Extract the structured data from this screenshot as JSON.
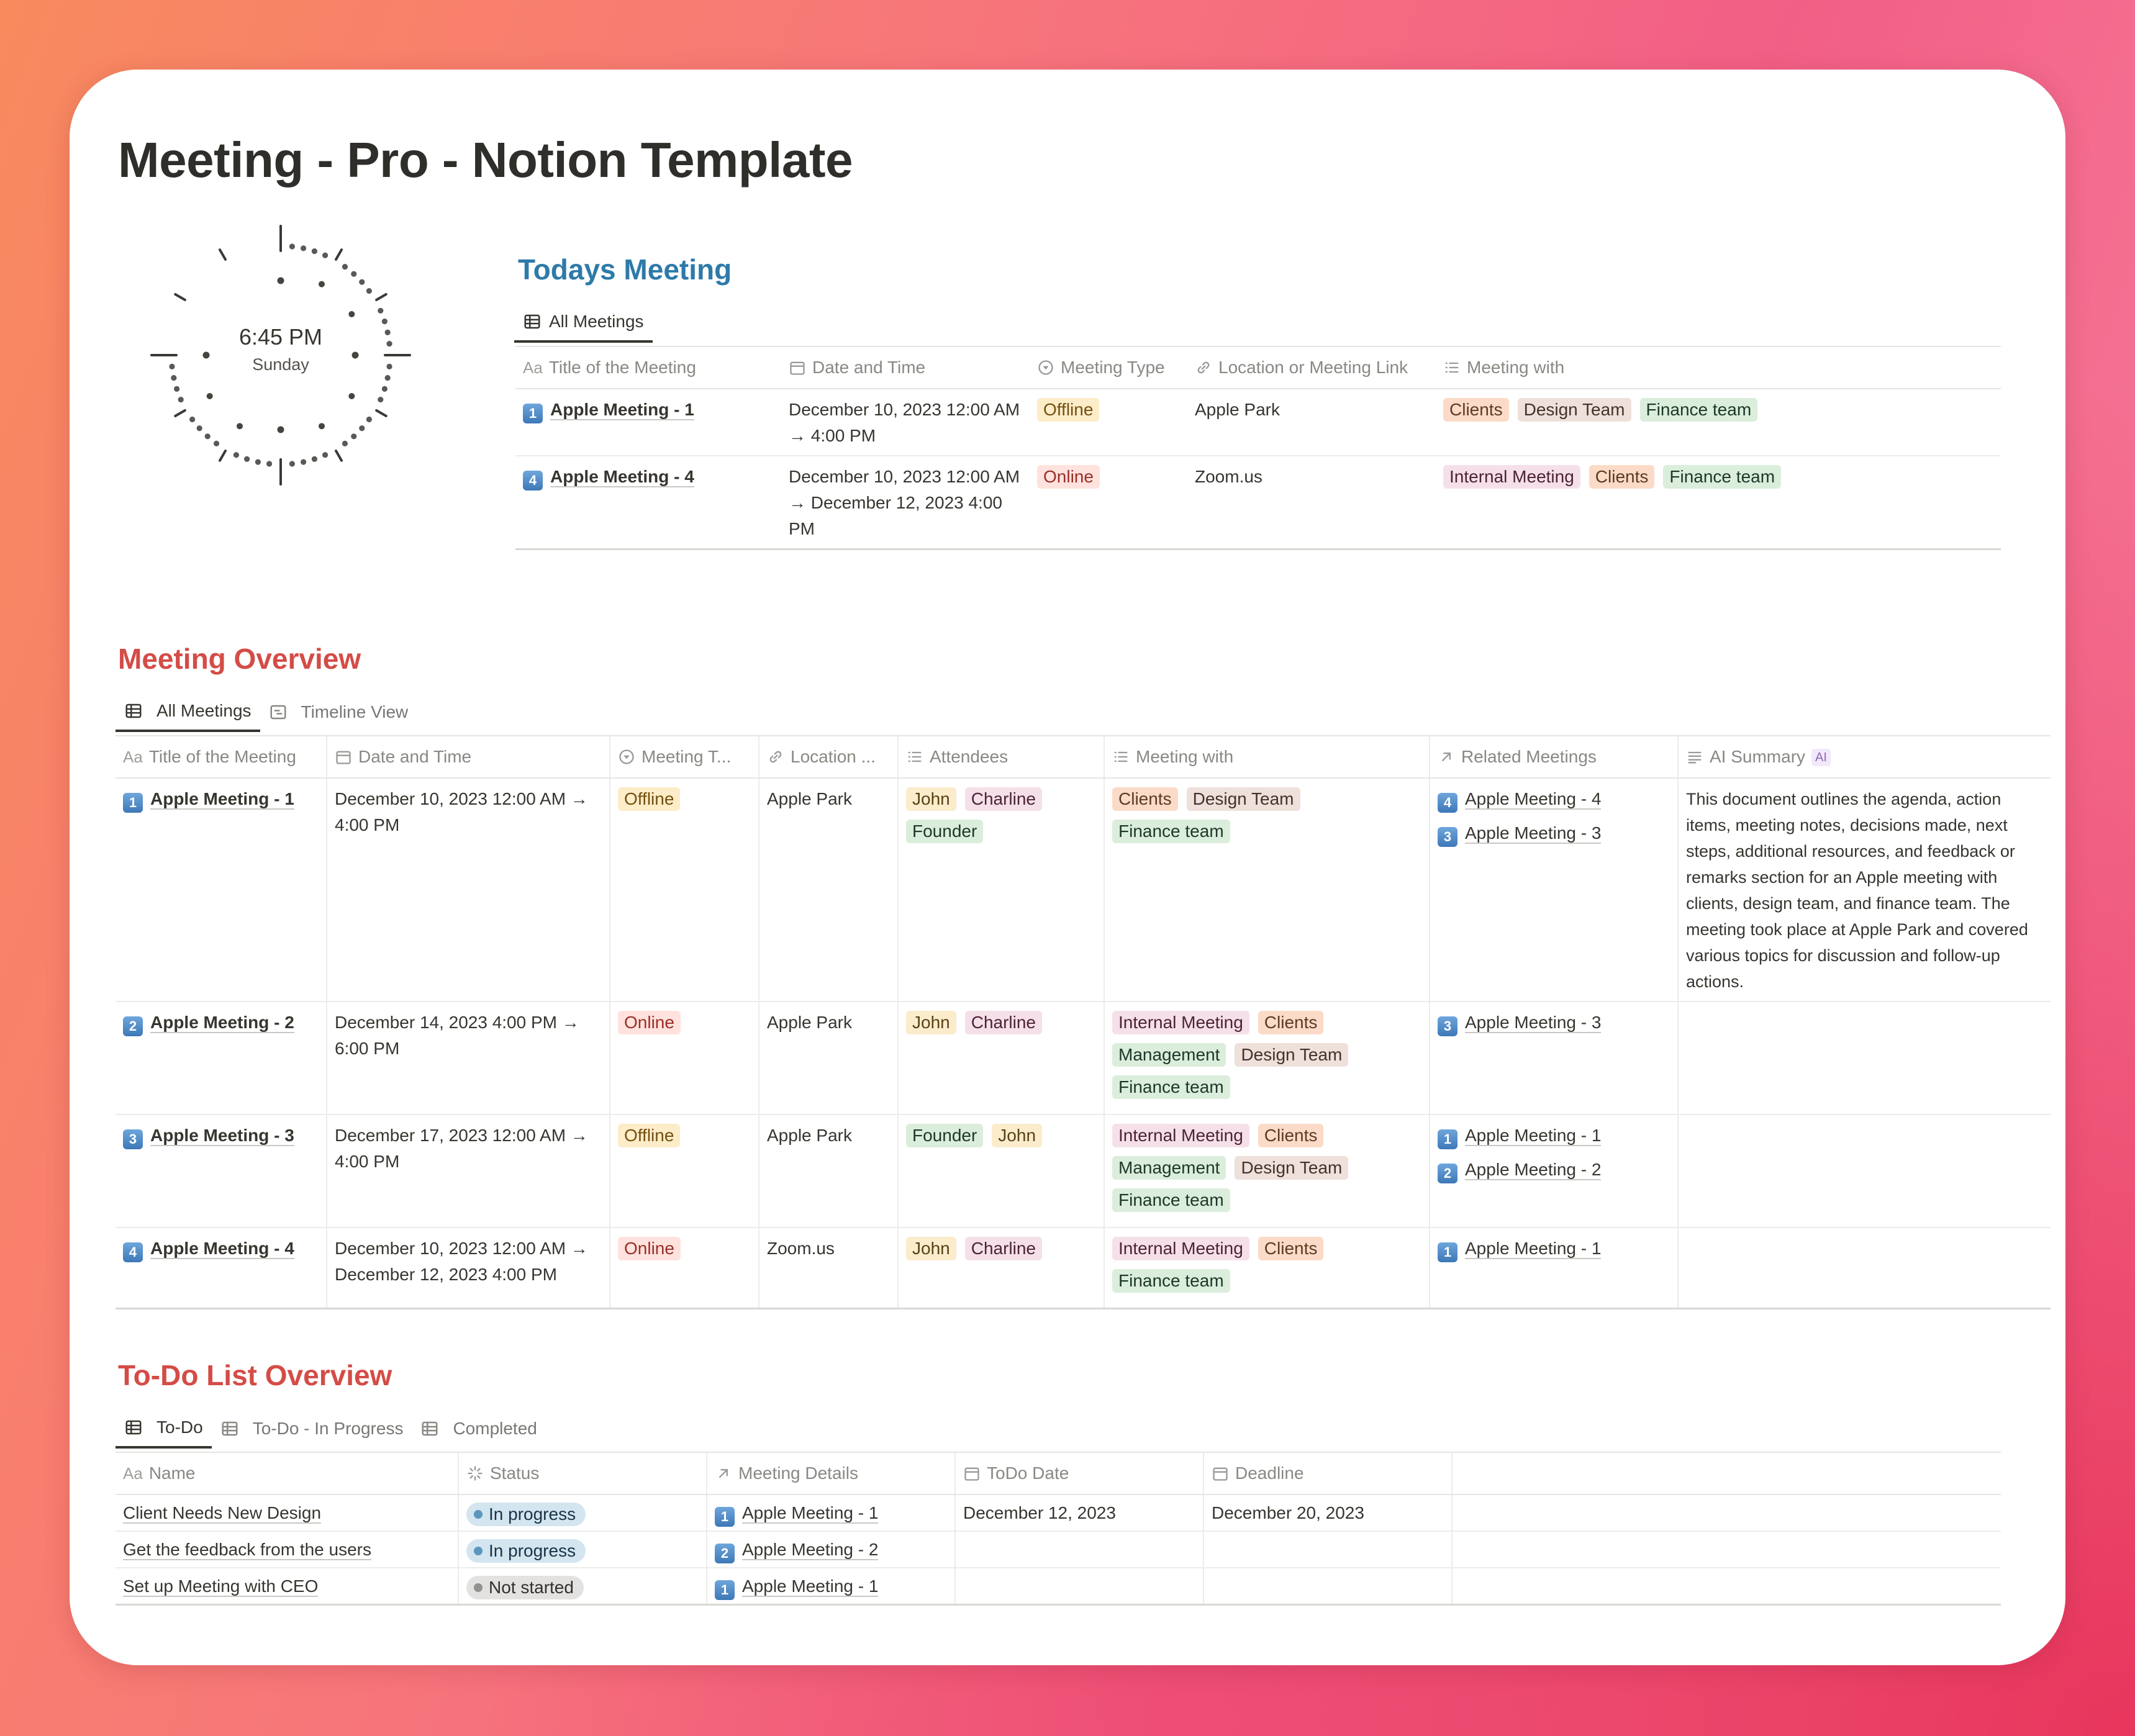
{
  "page_title": "Meeting - Pro - Notion Template",
  "clock": {
    "time": "6:45 PM",
    "day": "Sunday"
  },
  "todays": {
    "heading": "Todays Meeting",
    "tab": "All Meetings",
    "columns": [
      "Title of the Meeting",
      "Date and Time",
      "Meeting Type",
      "Location or Meeting Link",
      "Meeting with"
    ],
    "rows": [
      {
        "num": "1",
        "title": "Apple Meeting - 1",
        "date": "December 10, 2023 12:00 AM → 4:00 PM",
        "type": "Offline",
        "location": "Apple Park",
        "with": [
          "Clients",
          "Design Team",
          "Finance team"
        ]
      },
      {
        "num": "4",
        "title": "Apple Meeting - 4",
        "date": "December 10, 2023 12:00 AM → December 12, 2023 4:00 PM",
        "type": "Online",
        "location": "Zoom.us",
        "with": [
          "Internal Meeting",
          "Clients",
          "Finance team"
        ]
      }
    ]
  },
  "overview": {
    "heading": "Meeting Overview",
    "tabs": [
      "All Meetings",
      "Timeline View"
    ],
    "columns": [
      "Title of the Meeting",
      "Date and Time",
      "Meeting T...",
      "Location ...",
      "Attendees",
      "Meeting with",
      "Related Meetings",
      "AI Summary"
    ],
    "ai_badge": "AI",
    "rows": [
      {
        "num": "1",
        "title": "Apple Meeting - 1",
        "date": "December 10, 2023 12:00 AM → 4:00 PM",
        "type": "Offline",
        "location": "Apple Park",
        "attendees": [
          "John",
          "Charline",
          "Founder"
        ],
        "with": [
          "Clients",
          "Design Team",
          "Finance team"
        ],
        "related": [
          {
            "num": "4",
            "title": "Apple Meeting - 4"
          },
          {
            "num": "3",
            "title": "Apple Meeting - 3"
          }
        ],
        "summary": "This document outlines the agenda, action items, meeting notes, decisions made, next steps, additional resources, and feedback or remarks section for an Apple meeting with clients, design team, and finance team. The meeting took place at Apple Park and covered various topics for discussion and follow-up actions."
      },
      {
        "num": "2",
        "title": "Apple Meeting - 2",
        "date": "December 14, 2023 4:00 PM → 6:00 PM",
        "type": "Online",
        "location": "Apple Park",
        "attendees": [
          "John",
          "Charline"
        ],
        "with": [
          "Internal Meeting",
          "Clients",
          "Management",
          "Design Team",
          "Finance team"
        ],
        "related": [
          {
            "num": "3",
            "title": "Apple Meeting - 3"
          }
        ],
        "summary": ""
      },
      {
        "num": "3",
        "title": "Apple Meeting - 3",
        "date": "December 17, 2023 12:00 AM → 4:00 PM",
        "type": "Offline",
        "location": "Apple Park",
        "attendees": [
          "Founder",
          "John"
        ],
        "with": [
          "Internal Meeting",
          "Clients",
          "Management",
          "Design Team",
          "Finance team"
        ],
        "related": [
          {
            "num": "1",
            "title": "Apple Meeting - 1"
          },
          {
            "num": "2",
            "title": "Apple Meeting - 2"
          }
        ],
        "summary": ""
      },
      {
        "num": "4",
        "title": "Apple Meeting - 4",
        "date": "December 10, 2023 12:00 AM → December 12, 2023 4:00 PM",
        "type": "Online",
        "location": "Zoom.us",
        "attendees": [
          "John",
          "Charline"
        ],
        "with": [
          "Internal Meeting",
          "Clients",
          "Finance team"
        ],
        "related": [
          {
            "num": "1",
            "title": "Apple Meeting - 1"
          }
        ],
        "summary": ""
      }
    ]
  },
  "todo": {
    "heading": "To-Do List Overview",
    "tabs": [
      "To-Do",
      "To-Do - In Progress",
      "Completed"
    ],
    "columns": [
      "Name",
      "Status",
      "Meeting Details",
      "ToDo Date",
      "Deadline"
    ],
    "rows": [
      {
        "name": "Client Needs New Design",
        "status": "In progress",
        "meeting_num": "1",
        "meeting": "Apple Meeting - 1",
        "todo_date": "December 12, 2023",
        "deadline": "December 20, 2023"
      },
      {
        "name": "Get the feedback from the users",
        "status": "In progress",
        "meeting_num": "2",
        "meeting": "Apple Meeting - 2",
        "todo_date": "",
        "deadline": ""
      },
      {
        "name": "Set up Meeting with CEO",
        "status": "Not started",
        "meeting_num": "1",
        "meeting": "Apple Meeting - 1",
        "todo_date": "",
        "deadline": ""
      }
    ]
  }
}
